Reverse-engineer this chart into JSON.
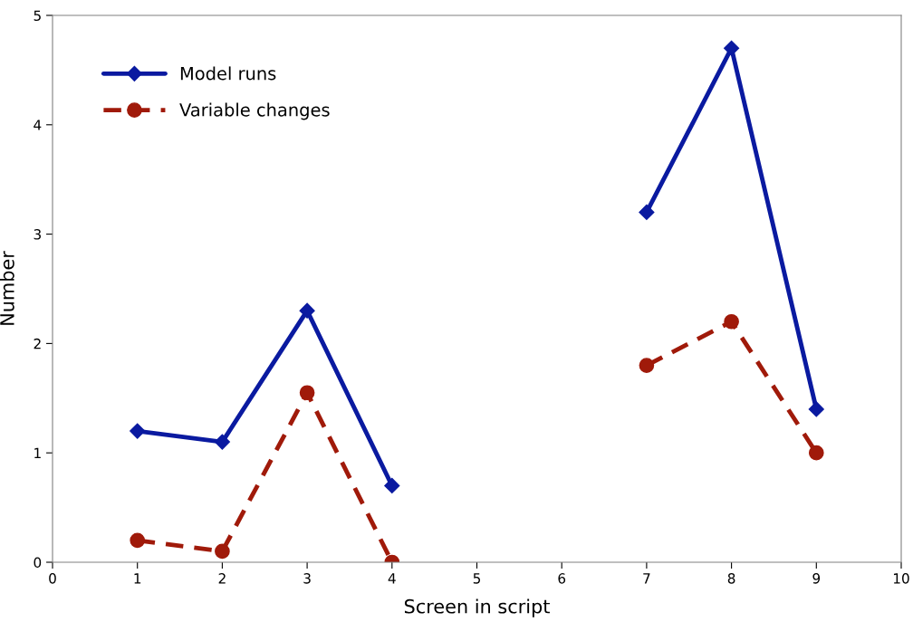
{
  "chart_data": {
    "type": "line",
    "xlabel": "Screen in script",
    "ylabel": "Number",
    "x": [
      1,
      2,
      3,
      4,
      5,
      6,
      7,
      8,
      9
    ],
    "series": [
      {
        "name": "Model runs",
        "color": "#0a1aa0",
        "marker": "diamond",
        "line_style": "solid",
        "values": [
          1.2,
          1.1,
          2.3,
          0.7,
          null,
          null,
          3.2,
          4.7,
          1.4
        ]
      },
      {
        "name": "Variable changes",
        "color": "#a01a0a",
        "marker": "circle",
        "line_style": "dashed",
        "values": [
          0.2,
          0.1,
          1.55,
          0,
          null,
          null,
          1.8,
          2.2,
          1.0
        ]
      }
    ],
    "xlim": [
      0,
      10
    ],
    "xticks": [
      0,
      1,
      2,
      3,
      4,
      5,
      6,
      7,
      8,
      9,
      10
    ],
    "ylim": [
      0,
      5
    ],
    "yticks": [
      0,
      1,
      2,
      3,
      4,
      5
    ],
    "grid": false,
    "legend": "top left"
  }
}
